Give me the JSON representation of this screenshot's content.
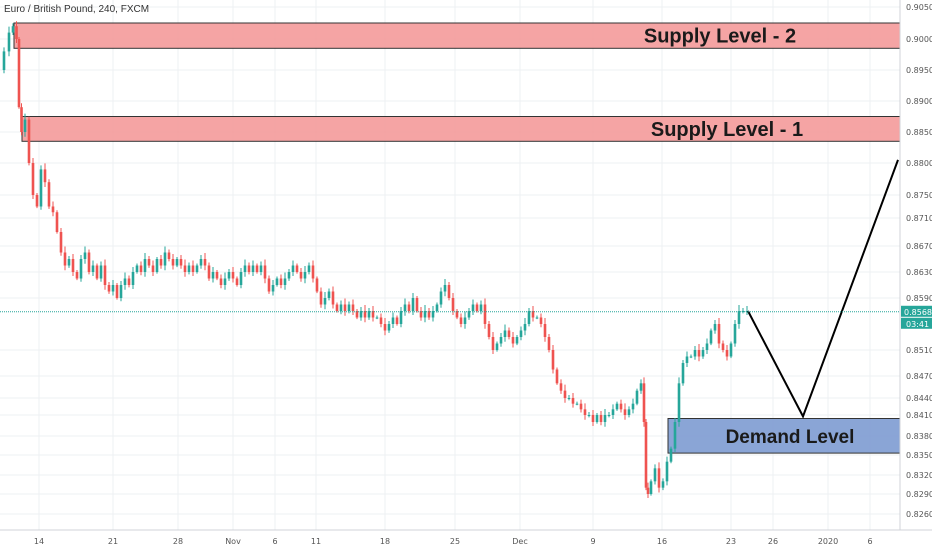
{
  "window": {
    "title": "Euro / British Pound, 240, FXCM"
  },
  "chart_data": {
    "type": "candlestick",
    "title": "Euro / British Pound, 240, FXCM",
    "y_ticks": [
      "0.90500",
      "0.90000",
      "0.89500",
      "0.89000",
      "0.88500",
      "0.88000",
      "0.87500",
      "0.87100",
      "0.86700",
      "0.86300",
      "0.85900",
      "0.85100",
      "0.84700",
      "0.84400",
      "0.84100",
      "0.83800",
      "0.83500",
      "0.83200",
      "0.82900",
      "0.82600"
    ],
    "y_tick_values": [
      0.905,
      0.9,
      0.895,
      0.89,
      0.885,
      0.88,
      0.875,
      0.871,
      0.867,
      0.863,
      0.859,
      0.851,
      0.847,
      0.844,
      0.841,
      0.838,
      0.835,
      0.832,
      0.829,
      0.826
    ],
    "x_ticks": [
      "14",
      "21",
      "28",
      "Nov",
      "6",
      "11",
      "18",
      "25",
      "Dec",
      "9",
      "16",
      "23",
      "26",
      "2020",
      "6"
    ],
    "x_tick_pos": [
      39,
      113,
      178,
      233,
      275,
      316,
      385,
      455,
      520,
      593,
      662,
      731,
      773,
      828,
      870
    ],
    "last_price": "0.85688",
    "countdown": "03:41",
    "price_path": [
      [
        0,
        0.895
      ],
      [
        6,
        0.898
      ],
      [
        10,
        0.901
      ],
      [
        14,
        0.902
      ],
      [
        17,
        0.9
      ],
      [
        19,
        0.889
      ],
      [
        22,
        0.885
      ],
      [
        26,
        0.887
      ],
      [
        30,
        0.88
      ],
      [
        34,
        0.875
      ],
      [
        38,
        0.873
      ],
      [
        42,
        0.879
      ],
      [
        46,
        0.877
      ],
      [
        50,
        0.873
      ],
      [
        54,
        0.872
      ],
      [
        58,
        0.869
      ],
      [
        62,
        0.866
      ],
      [
        66,
        0.864
      ],
      [
        70,
        0.865
      ],
      [
        74,
        0.863
      ],
      [
        78,
        0.862
      ],
      [
        82,
        0.865
      ],
      [
        86,
        0.866
      ],
      [
        90,
        0.863
      ],
      [
        94,
        0.864
      ],
      [
        98,
        0.862
      ],
      [
        102,
        0.864
      ],
      [
        106,
        0.861
      ],
      [
        110,
        0.86
      ],
      [
        114,
        0.861
      ],
      [
        118,
        0.859
      ],
      [
        122,
        0.861
      ],
      [
        126,
        0.862
      ],
      [
        130,
        0.861
      ],
      [
        134,
        0.863
      ],
      [
        138,
        0.864
      ],
      [
        142,
        0.863
      ],
      [
        146,
        0.865
      ],
      [
        150,
        0.864
      ],
      [
        154,
        0.863
      ],
      [
        158,
        0.865
      ],
      [
        162,
        0.864
      ],
      [
        166,
        0.866
      ],
      [
        170,
        0.865
      ],
      [
        174,
        0.864
      ],
      [
        178,
        0.865
      ],
      [
        182,
        0.864
      ],
      [
        186,
        0.863
      ],
      [
        190,
        0.864
      ],
      [
        194,
        0.863
      ],
      [
        198,
        0.864
      ],
      [
        202,
        0.865
      ],
      [
        206,
        0.864
      ],
      [
        210,
        0.862
      ],
      [
        214,
        0.863
      ],
      [
        218,
        0.862
      ],
      [
        222,
        0.861
      ],
      [
        226,
        0.862
      ],
      [
        230,
        0.863
      ],
      [
        234,
        0.862
      ],
      [
        238,
        0.861
      ],
      [
        242,
        0.863
      ],
      [
        246,
        0.864
      ],
      [
        250,
        0.863
      ],
      [
        254,
        0.864
      ],
      [
        258,
        0.863
      ],
      [
        262,
        0.864
      ],
      [
        266,
        0.862
      ],
      [
        270,
        0.86
      ],
      [
        274,
        0.861
      ],
      [
        278,
        0.862
      ],
      [
        282,
        0.861
      ],
      [
        286,
        0.862
      ],
      [
        290,
        0.863
      ],
      [
        294,
        0.864
      ],
      [
        298,
        0.863
      ],
      [
        302,
        0.862
      ],
      [
        306,
        0.863
      ],
      [
        310,
        0.864
      ],
      [
        314,
        0.862
      ],
      [
        318,
        0.86
      ],
      [
        322,
        0.858
      ],
      [
        326,
        0.859
      ],
      [
        330,
        0.86
      ],
      [
        334,
        0.858
      ],
      [
        338,
        0.857
      ],
      [
        342,
        0.858
      ],
      [
        346,
        0.857
      ],
      [
        350,
        0.858
      ],
      [
        354,
        0.857
      ],
      [
        358,
        0.856
      ],
      [
        362,
        0.857
      ],
      [
        366,
        0.856
      ],
      [
        370,
        0.857
      ],
      [
        374,
        0.856
      ],
      [
        378,
        0.856
      ],
      [
        382,
        0.855
      ],
      [
        386,
        0.854
      ],
      [
        390,
        0.855
      ],
      [
        394,
        0.856
      ],
      [
        398,
        0.855
      ],
      [
        402,
        0.857
      ],
      [
        406,
        0.858
      ],
      [
        410,
        0.857
      ],
      [
        414,
        0.859
      ],
      [
        418,
        0.857
      ],
      [
        422,
        0.856
      ],
      [
        426,
        0.857
      ],
      [
        430,
        0.856
      ],
      [
        434,
        0.857
      ],
      [
        438,
        0.858
      ],
      [
        442,
        0.86
      ],
      [
        446,
        0.861
      ],
      [
        450,
        0.859
      ],
      [
        454,
        0.857
      ],
      [
        458,
        0.856
      ],
      [
        462,
        0.855
      ],
      [
        466,
        0.856
      ],
      [
        470,
        0.857
      ],
      [
        474,
        0.858
      ],
      [
        478,
        0.857
      ],
      [
        482,
        0.858
      ],
      [
        486,
        0.855
      ],
      [
        490,
        0.853
      ],
      [
        494,
        0.851
      ],
      [
        498,
        0.852
      ],
      [
        502,
        0.853
      ],
      [
        506,
        0.854
      ],
      [
        510,
        0.853
      ],
      [
        514,
        0.852
      ],
      [
        518,
        0.853
      ],
      [
        522,
        0.854
      ],
      [
        526,
        0.855
      ],
      [
        530,
        0.857
      ],
      [
        534,
        0.856
      ],
      [
        538,
        0.856
      ],
      [
        542,
        0.855
      ],
      [
        546,
        0.853
      ],
      [
        550,
        0.851
      ],
      [
        554,
        0.848
      ],
      [
        558,
        0.846
      ],
      [
        562,
        0.845
      ],
      [
        566,
        0.844
      ],
      [
        570,
        0.844
      ],
      [
        574,
        0.843
      ],
      [
        578,
        0.843
      ],
      [
        582,
        0.842
      ],
      [
        586,
        0.841
      ],
      [
        590,
        0.841
      ],
      [
        594,
        0.84
      ],
      [
        598,
        0.841
      ],
      [
        602,
        0.84
      ],
      [
        606,
        0.841
      ],
      [
        610,
        0.841
      ],
      [
        614,
        0.842
      ],
      [
        618,
        0.843
      ],
      [
        622,
        0.842
      ],
      [
        626,
        0.841
      ],
      [
        630,
        0.842
      ],
      [
        634,
        0.843
      ],
      [
        638,
        0.845
      ],
      [
        642,
        0.846
      ],
      [
        644,
        0.84
      ],
      [
        646,
        0.83
      ],
      [
        648,
        0.829
      ],
      [
        652,
        0.831
      ],
      [
        656,
        0.833
      ],
      [
        660,
        0.83
      ],
      [
        664,
        0.831
      ],
      [
        668,
        0.834
      ],
      [
        672,
        0.836
      ],
      [
        676,
        0.84
      ],
      [
        680,
        0.846
      ],
      [
        684,
        0.849
      ],
      [
        688,
        0.85
      ],
      [
        692,
        0.85
      ],
      [
        696,
        0.851
      ],
      [
        700,
        0.85
      ],
      [
        704,
        0.851
      ],
      [
        708,
        0.852
      ],
      [
        712,
        0.854
      ],
      [
        716,
        0.855
      ],
      [
        720,
        0.852
      ],
      [
        724,
        0.851
      ],
      [
        728,
        0.85
      ],
      [
        732,
        0.852
      ],
      [
        736,
        0.855
      ],
      [
        740,
        0.857
      ],
      [
        744,
        0.857
      ],
      [
        748,
        0.857
      ]
    ],
    "projection": [
      [
        748,
        0.857
      ],
      [
        803,
        0.8408
      ],
      [
        898,
        0.8805
      ]
    ],
    "zones": [
      {
        "label": "Supply Level - 2",
        "y_top": 0.9025,
        "y_bottom": 0.8985,
        "color": "#f49a9a",
        "border": "#333333"
      },
      {
        "label": "Supply Level - 1",
        "y_top": 0.8875,
        "y_bottom": 0.8835,
        "color": "#f49a9a",
        "border": "#333333"
      },
      {
        "label": "Demand Level",
        "y_top": 0.8405,
        "y_bottom": 0.8353,
        "color": "#7d9bd1",
        "border": "#333333"
      }
    ],
    "colors": {
      "up": "#26a69a",
      "down": "#ef5350",
      "price_line": "#26a69a",
      "projection": "#000000"
    }
  }
}
